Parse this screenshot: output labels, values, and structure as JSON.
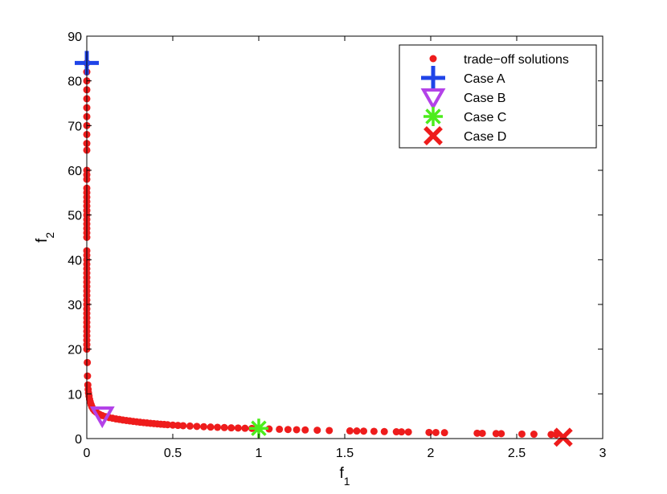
{
  "chart_data": {
    "type": "scatter",
    "title": "",
    "xlabel": {
      "base": "f",
      "sub": "1"
    },
    "ylabel": {
      "base": "f",
      "sub": "2"
    },
    "xlim": [
      0,
      3
    ],
    "ylim": [
      0,
      90
    ],
    "xticks": [
      0,
      0.5,
      1,
      1.5,
      2,
      2.5,
      3
    ],
    "xtick_labels": [
      "0",
      "0.5",
      "1",
      "1.5",
      "2",
      "2.5",
      "3"
    ],
    "yticks": [
      0,
      10,
      20,
      30,
      40,
      50,
      60,
      70,
      80,
      90
    ],
    "ytick_labels": [
      "0",
      "10",
      "20",
      "30",
      "40",
      "50",
      "60",
      "70",
      "80",
      "90"
    ],
    "grid": false,
    "legend_position": "top-right",
    "series": [
      {
        "name": "trade−off solutions",
        "marker": "dot",
        "color": "#ee1c1c",
        "points": [
          [
            0.0,
            84
          ],
          [
            0.0,
            82
          ],
          [
            0.0,
            80
          ],
          [
            0.0,
            78
          ],
          [
            0.0,
            76
          ],
          [
            0.0,
            74
          ],
          [
            0.0,
            72
          ],
          [
            0.0,
            70
          ],
          [
            0.0,
            68
          ],
          [
            0.0,
            66
          ],
          [
            0.0,
            64.5
          ],
          [
            0.0,
            60
          ],
          [
            0.0,
            59
          ],
          [
            0.0,
            58
          ],
          [
            0.0,
            56
          ],
          [
            0.0,
            55
          ],
          [
            0.0,
            54
          ],
          [
            0.0,
            53
          ],
          [
            0.0,
            52
          ],
          [
            0.0,
            51
          ],
          [
            0.0,
            50
          ],
          [
            0.0,
            49
          ],
          [
            0.0,
            48
          ],
          [
            0.0,
            47
          ],
          [
            0.0,
            46
          ],
          [
            0.0,
            45
          ],
          [
            0.0,
            42
          ],
          [
            0.0,
            41
          ],
          [
            0.0,
            40
          ],
          [
            0.0,
            39
          ],
          [
            0.0,
            38
          ],
          [
            0.0,
            37
          ],
          [
            0.0,
            36
          ],
          [
            0.0,
            35
          ],
          [
            0.0,
            34
          ],
          [
            0.0,
            33
          ],
          [
            0.0,
            32
          ],
          [
            0.0,
            31
          ],
          [
            0.0,
            30
          ],
          [
            0.0,
            29
          ],
          [
            0.0,
            28
          ],
          [
            0.0,
            27
          ],
          [
            0.0,
            26
          ],
          [
            0.0,
            25
          ],
          [
            0.0,
            24
          ],
          [
            0.0,
            23
          ],
          [
            0.0,
            22
          ],
          [
            0.0,
            21
          ],
          [
            0.0,
            20
          ],
          [
            0.003,
            17
          ],
          [
            0.004,
            14
          ],
          [
            0.006,
            12
          ],
          [
            0.008,
            11
          ],
          [
            0.01,
            10.2
          ],
          [
            0.013,
            9.5
          ],
          [
            0.016,
            8.8
          ],
          [
            0.02,
            8.2
          ],
          [
            0.025,
            7.6
          ],
          [
            0.03,
            7.1
          ],
          [
            0.037,
            6.6
          ],
          [
            0.045,
            6.2
          ],
          [
            0.055,
            5.9
          ],
          [
            0.065,
            5.6
          ],
          [
            0.075,
            5.4
          ],
          [
            0.09,
            5.15
          ],
          [
            0.11,
            4.9
          ],
          [
            0.13,
            4.7
          ],
          [
            0.15,
            4.55
          ],
          [
            0.17,
            4.4
          ],
          [
            0.19,
            4.28
          ],
          [
            0.21,
            4.15
          ],
          [
            0.23,
            4.05
          ],
          [
            0.25,
            3.95
          ],
          [
            0.27,
            3.85
          ],
          [
            0.29,
            3.75
          ],
          [
            0.31,
            3.65
          ],
          [
            0.33,
            3.57
          ],
          [
            0.35,
            3.5
          ],
          [
            0.37,
            3.42
          ],
          [
            0.39,
            3.35
          ],
          [
            0.41,
            3.28
          ],
          [
            0.43,
            3.22
          ],
          [
            0.45,
            3.16
          ],
          [
            0.47,
            3.1
          ],
          [
            0.5,
            3.02
          ],
          [
            0.53,
            2.95
          ],
          [
            0.56,
            2.88
          ],
          [
            0.6,
            2.8
          ],
          [
            0.64,
            2.72
          ],
          [
            0.68,
            2.65
          ],
          [
            0.72,
            2.58
          ],
          [
            0.76,
            2.52
          ],
          [
            0.8,
            2.46
          ],
          [
            0.84,
            2.4
          ],
          [
            0.88,
            2.36
          ],
          [
            0.92,
            2.31
          ],
          [
            0.96,
            2.27
          ],
          [
            1.0,
            2.22
          ],
          [
            1.06,
            2.15
          ],
          [
            1.12,
            2.08
          ],
          [
            1.17,
            2.03
          ],
          [
            1.22,
            1.98
          ],
          [
            1.27,
            1.93
          ],
          [
            1.34,
            1.87
          ],
          [
            1.41,
            1.8
          ],
          [
            1.53,
            1.72
          ],
          [
            1.57,
            1.7
          ],
          [
            1.61,
            1.67
          ],
          [
            1.67,
            1.62
          ],
          [
            1.73,
            1.57
          ],
          [
            1.8,
            1.52
          ],
          [
            1.83,
            1.5
          ],
          [
            1.87,
            1.47
          ],
          [
            1.99,
            1.38
          ],
          [
            2.03,
            1.35
          ],
          [
            2.08,
            1.32
          ],
          [
            2.27,
            1.2
          ],
          [
            2.3,
            1.17
          ],
          [
            2.38,
            1.12
          ],
          [
            2.41,
            1.1
          ],
          [
            2.53,
            1.02
          ],
          [
            2.6,
            0.98
          ],
          [
            2.7,
            0.92
          ],
          [
            2.73,
            0.9
          ]
        ]
      },
      {
        "name": "Case A",
        "marker": "plus",
        "color": "#1f44e8",
        "points": [
          [
            0.0,
            84
          ]
        ]
      },
      {
        "name": "Case B",
        "marker": "triangle-down",
        "color": "#b342e8",
        "points": [
          [
            0.09,
            5.2
          ]
        ]
      },
      {
        "name": "Case C",
        "marker": "asterisk",
        "color": "#4cec1c",
        "points": [
          [
            1.0,
            2.3
          ]
        ]
      },
      {
        "name": "Case D",
        "marker": "x",
        "color": "#ee1c1c",
        "points": [
          [
            2.77,
            0.3
          ]
        ]
      }
    ]
  }
}
